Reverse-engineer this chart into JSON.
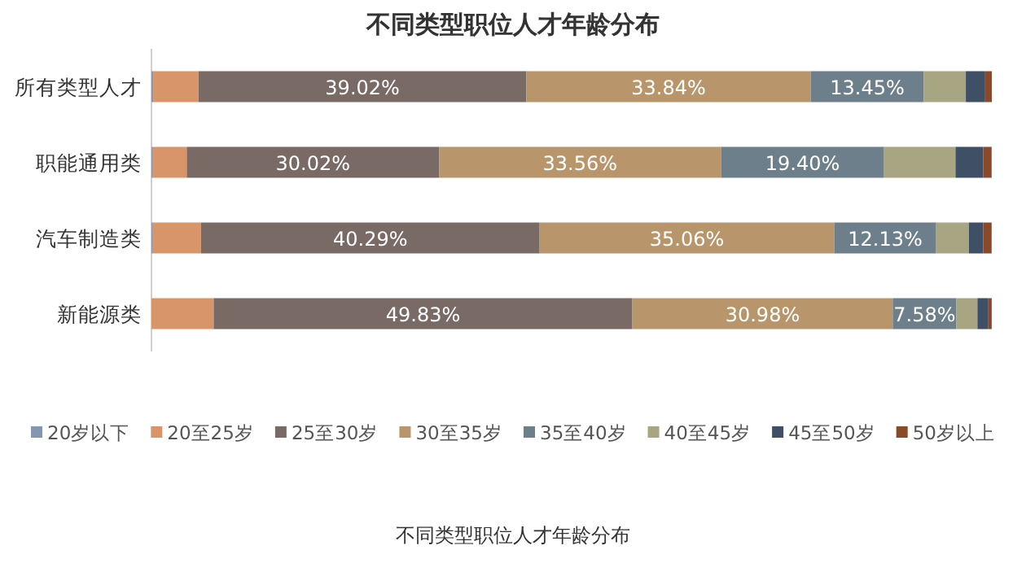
{
  "chart_data": {
    "type": "bar",
    "orientation": "horizontal",
    "stacked": true,
    "title": "不同类型职位人才年龄分布",
    "categories": [
      "所有类型人才",
      "职能通用类",
      "汽车制造类",
      "新能源类"
    ],
    "xlim": [
      0,
      100
    ],
    "legend": "bottom",
    "series": [
      {
        "name": "20岁以下",
        "color": "#8497b0",
        "values": [
          0.2,
          0.1,
          0.1,
          0
        ],
        "value_labels": [
          null,
          null,
          null,
          null
        ]
      },
      {
        "name": "20至25岁",
        "color": "#d9956a",
        "values": [
          5.4,
          4.1,
          5.8,
          7.4
        ],
        "value_labels": [
          null,
          null,
          null,
          null
        ]
      },
      {
        "name": "25至30岁",
        "color": "#7a6a66",
        "values": [
          39.02,
          30.02,
          40.29,
          49.83
        ],
        "value_labels": [
          "39.02%",
          "30.02%",
          "40.29%",
          "49.83%"
        ]
      },
      {
        "name": "30至35岁",
        "color": "#b8956a",
        "values": [
          33.84,
          33.56,
          35.06,
          30.98
        ],
        "value_labels": [
          "33.84%",
          "33.56%",
          "35.06%",
          "30.98%"
        ]
      },
      {
        "name": "35至40岁",
        "color": "#6d7f8a",
        "values": [
          13.45,
          19.4,
          12.13,
          7.58
        ],
        "value_labels": [
          "13.45%",
          "19.40%",
          "12.13%",
          "7.58%"
        ]
      },
      {
        "name": "40至45岁",
        "color": "#a8a582",
        "values": [
          5.0,
          8.5,
          3.9,
          2.5
        ],
        "value_labels": [
          null,
          null,
          null,
          null
        ]
      },
      {
        "name": "45至50岁",
        "color": "#3f4f66",
        "values": [
          2.3,
          3.3,
          1.7,
          1.3
        ],
        "value_labels": [
          null,
          null,
          null,
          null
        ]
      },
      {
        "name": "50岁以上",
        "color": "#8a4a2a",
        "values": [
          0.8,
          1.0,
          1.0,
          0.4
        ],
        "value_labels": [
          null,
          null,
          null,
          null
        ]
      }
    ],
    "annotations": [
      "不同类型职位人才年龄分布"
    ]
  }
}
